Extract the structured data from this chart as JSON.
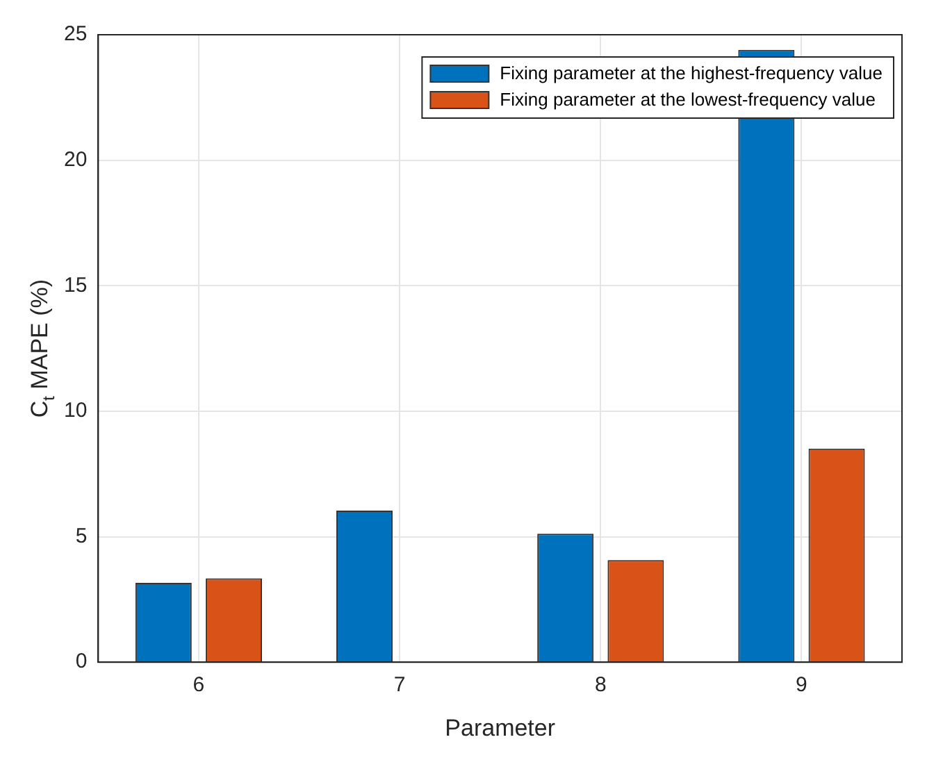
{
  "chart_data": {
    "type": "bar",
    "xlabel": "Parameter",
    "ylabel": "C$_{t}$ MAPE (%)",
    "categories": [
      "6",
      "7",
      "8",
      "9"
    ],
    "series": [
      {
        "name": "Fixing parameter at the highest-frequency value",
        "color": "#0072bd",
        "values": [
          3.16,
          6.04,
          5.12,
          24.4
        ]
      },
      {
        "name": "Fixing parameter at the lowest-frequency value",
        "color": "#d95319",
        "values": [
          3.34,
          0,
          4.07,
          8.51
        ]
      }
    ],
    "ylim": [
      0,
      25
    ],
    "yticks": [
      0,
      5,
      10,
      15,
      20,
      25
    ],
    "grid": true,
    "legend": "top right"
  }
}
